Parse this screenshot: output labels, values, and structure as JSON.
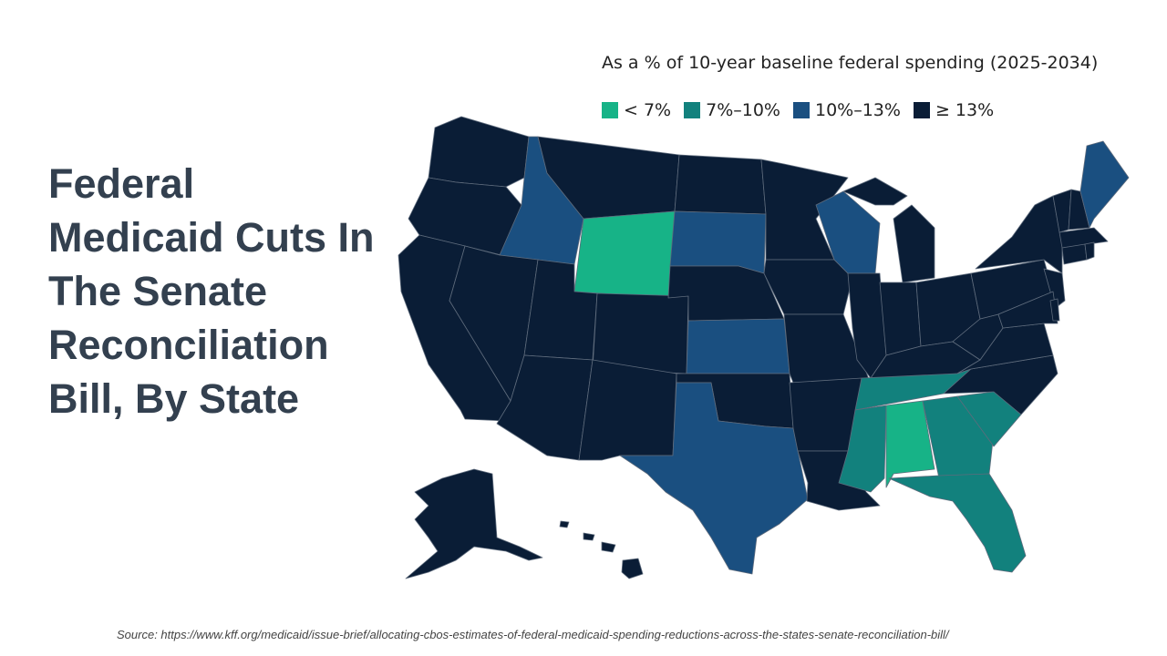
{
  "slide": {
    "title": "Federal Medicaid Cuts In The Senate Reconciliation Bill, By State",
    "source": "Source: https://www.kff.org/medicaid/issue-brief/allocating-cbos-estimates-of-federal-medicaid-spending-reductions-across-the-states-senate-reconciliation-bill/"
  },
  "legend": {
    "title": "As a % of 10-year baseline federal spending (2025-2034)",
    "items": [
      {
        "label": "< 7%",
        "color": "#17b387"
      },
      {
        "label": "7%–10%",
        "color": "#12817d"
      },
      {
        "label": "10%–13%",
        "color": "#1a4f80"
      },
      {
        "label": "≥ 13%",
        "color": "#0a1d36"
      }
    ]
  },
  "map_data": {
    "type": "choropleth",
    "region": "United States",
    "categories": {
      "< 7%": [
        "WY",
        "AL"
      ],
      "7%–10%": [
        "MS",
        "TN",
        "GA",
        "SC",
        "FL"
      ],
      "10%–13%": [
        "ID",
        "SD",
        "KS",
        "TX",
        "WI",
        "ME"
      ]
    },
    "default_category": "≥ 13%"
  }
}
